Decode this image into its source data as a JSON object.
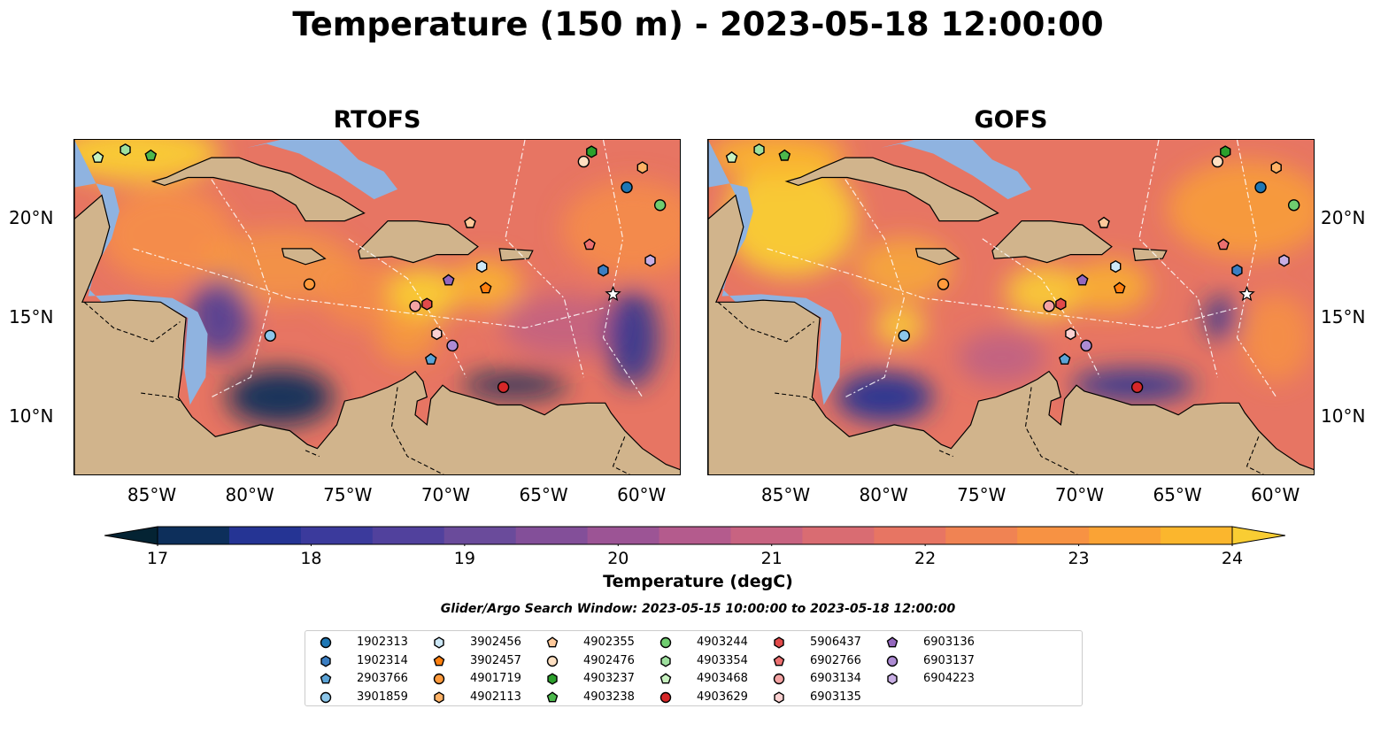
{
  "title": "Temperature (150 m) - 2023-05-18 12:00:00",
  "panels": [
    {
      "title": "RTOFS",
      "variant": "rtofs"
    },
    {
      "title": "GOFS",
      "variant": "gofs"
    }
  ],
  "map_extent": {
    "lon": [
      -89,
      -58
    ],
    "lat": [
      7,
      24
    ]
  },
  "lon_ticks": [
    {
      "value": -85,
      "label": "85°W"
    },
    {
      "value": -80,
      "label": "80°W"
    },
    {
      "value": -75,
      "label": "75°W"
    },
    {
      "value": -70,
      "label": "70°W"
    },
    {
      "value": -65,
      "label": "65°W"
    },
    {
      "value": -60,
      "label": "60°W"
    }
  ],
  "lat_ticks": [
    {
      "value": 20,
      "label": "20°N"
    },
    {
      "value": 15,
      "label": "15°N"
    },
    {
      "value": 10,
      "label": "10°N"
    }
  ],
  "colorbar": {
    "label": "Temperature (degC)",
    "min": 17,
    "max": 24.5,
    "step": 0.5,
    "ticks": [
      "17",
      "18",
      "19",
      "20",
      "21",
      "22",
      "23",
      "24"
    ],
    "colors": [
      "#042333",
      "#0d2f5b",
      "#253494",
      "#3b3a9c",
      "#51419d",
      "#6a4b9b",
      "#834f99",
      "#9c5495",
      "#b45b8d",
      "#c86381",
      "#d96c72",
      "#e77563",
      "#f08353",
      "#f79243",
      "#faa335",
      "#fbb62d",
      "#f9cd33"
    ]
  },
  "search_window": "Glider/Argo Search Window: 2023-05-15 10:00:00 to 2023-05-18 12:00:00",
  "floats": [
    {
      "id": "1902313",
      "marker": "circle",
      "color": "#1f77b4",
      "lon": -60.8,
      "lat": 21.6
    },
    {
      "id": "1902314",
      "marker": "hexagon",
      "color": "#3b7ec2",
      "lon": -62.0,
      "lat": 17.4
    },
    {
      "id": "2903766",
      "marker": "pentagon",
      "color": "#5ba3d6",
      "lon": -70.8,
      "lat": 12.9
    },
    {
      "id": "3901859",
      "marker": "circle",
      "color": "#8cc6ea",
      "lon": -79.0,
      "lat": 14.1
    },
    {
      "id": "3902456",
      "marker": "hexagon",
      "color": "#cde8f7",
      "lon": -68.2,
      "lat": 17.6
    },
    {
      "id": "3902457",
      "marker": "pentagon",
      "color": "#ff7f0e",
      "lon": -68.0,
      "lat": 16.5
    },
    {
      "id": "4901719",
      "marker": "circle",
      "color": "#ff9a3c",
      "lon": -77.0,
      "lat": 16.7
    },
    {
      "id": "4902113",
      "marker": "hexagon",
      "color": "#ffb266",
      "lon": -60.0,
      "lat": 22.6
    },
    {
      "id": "4902355",
      "marker": "pentagon",
      "color": "#ffc99a",
      "lon": -68.8,
      "lat": 19.8
    },
    {
      "id": "4902476",
      "marker": "circle",
      "color": "#ffe0c2",
      "lon": -63.0,
      "lat": 22.9
    },
    {
      "id": "4903237",
      "marker": "hexagon",
      "color": "#2ca02c",
      "lon": -62.6,
      "lat": 23.4
    },
    {
      "id": "4903238",
      "marker": "pentagon",
      "color": "#4cb84c",
      "lon": -85.1,
      "lat": 23.2
    },
    {
      "id": "4903244",
      "marker": "circle",
      "color": "#6fcd6f",
      "lon": -59.1,
      "lat": 20.7
    },
    {
      "id": "4903354",
      "marker": "hexagon",
      "color": "#9ee09e",
      "lon": -86.4,
      "lat": 23.5
    },
    {
      "id": "4903468",
      "marker": "pentagon",
      "color": "#c8f2c0",
      "lon": -87.8,
      "lat": 23.1
    },
    {
      "id": "4903629",
      "marker": "circle",
      "color": "#d62728",
      "lon": -67.1,
      "lat": 11.5
    },
    {
      "id": "5906437",
      "marker": "hexagon",
      "color": "#e24a4a",
      "lon": -71.0,
      "lat": 15.7
    },
    {
      "id": "6902766",
      "marker": "pentagon",
      "color": "#ec7070",
      "lon": -62.7,
      "lat": 18.7
    },
    {
      "id": "6903134",
      "marker": "circle",
      "color": "#f4a3a3",
      "lon": -71.6,
      "lat": 15.6
    },
    {
      "id": "6903135",
      "marker": "hexagon",
      "color": "#fbd1d1",
      "lon": -70.5,
      "lat": 14.2
    },
    {
      "id": "6903136",
      "marker": "pentagon",
      "color": "#9467bd",
      "lon": -69.9,
      "lat": 16.9
    },
    {
      "id": "6903137",
      "marker": "circle",
      "color": "#ad8bd3",
      "lon": -69.7,
      "lat": 13.6
    },
    {
      "id": "6904223",
      "marker": "hexagon",
      "color": "#c8aee4",
      "lon": -59.6,
      "lat": 17.9
    }
  ],
  "star": {
    "lon": -61.5,
    "lat": 16.2
  },
  "colors": {
    "ocean_shelf": "#8fb3e0",
    "land": "#d1b48c"
  }
}
